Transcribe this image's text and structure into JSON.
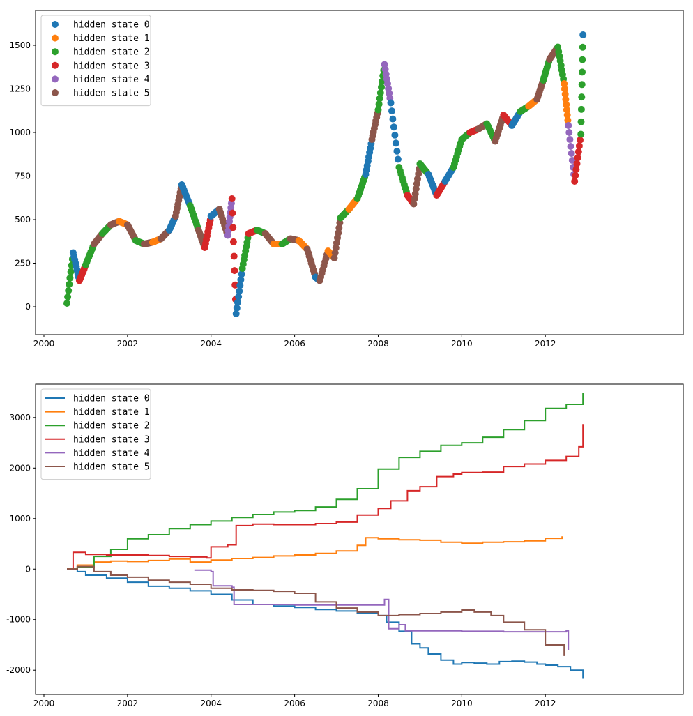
{
  "chart_data": [
    {
      "type": "scatter",
      "title": "",
      "xlabel": "",
      "ylabel": "",
      "xlim": [
        1999.8,
        2015.3
      ],
      "ylim": [
        -160,
        1700
      ],
      "xticks": [
        "2000",
        "2002",
        "2004",
        "2006",
        "2008",
        "2010",
        "2012"
      ],
      "yticks": [
        "0",
        "250",
        "500",
        "750",
        "1000",
        "1250",
        "1500"
      ],
      "grid": false,
      "legend_position": "top-left",
      "series": [
        {
          "name": "hidden state 0",
          "color": "#1f77b4"
        },
        {
          "name": "hidden state 1",
          "color": "#ff7f0e"
        },
        {
          "name": "hidden state 2",
          "color": "#2ca02c"
        },
        {
          "name": "hidden state 3",
          "color": "#d62728"
        },
        {
          "name": "hidden state 4",
          "color": "#9467bd"
        },
        {
          "name": "hidden state 5",
          "color": "#8c564b"
        }
      ],
      "price_x": [
        2000.55,
        2000.7,
        2000.85,
        2001.0,
        2001.2,
        2001.4,
        2001.6,
        2001.8,
        2002.0,
        2002.2,
        2002.4,
        2002.6,
        2002.8,
        2003.0,
        2003.15,
        2003.3,
        2003.5,
        2003.7,
        2003.85,
        2004.0,
        2004.2,
        2004.4,
        2004.5,
        2004.6,
        2004.75,
        2004.9,
        2005.1,
        2005.3,
        2005.5,
        2005.7,
        2005.9,
        2006.1,
        2006.3,
        2006.5,
        2006.6,
        2006.8,
        2006.95,
        2007.1,
        2007.3,
        2007.5,
        2007.7,
        2007.85,
        2008.0,
        2008.15,
        2008.3,
        2008.5,
        2008.7,
        2008.85,
        2009.0,
        2009.2,
        2009.4,
        2009.6,
        2009.8,
        2010.0,
        2010.2,
        2010.4,
        2010.6,
        2010.8,
        2011.0,
        2011.2,
        2011.4,
        2011.6,
        2011.8,
        2011.95,
        2012.1,
        2012.3,
        2012.45,
        2012.55,
        2012.7,
        2012.85,
        2012.9
      ],
      "price_y": [
        20,
        310,
        150,
        240,
        360,
        420,
        470,
        490,
        470,
        380,
        360,
        370,
        390,
        440,
        520,
        700,
        580,
        440,
        340,
        520,
        560,
        410,
        620,
        -40,
        220,
        420,
        440,
        420,
        360,
        360,
        390,
        380,
        330,
        170,
        150,
        320,
        280,
        510,
        560,
        620,
        760,
        960,
        1130,
        1390,
        1170,
        800,
        640,
        590,
        820,
        760,
        640,
        720,
        800,
        960,
        1000,
        1020,
        1050,
        950,
        1100,
        1040,
        1120,
        1150,
        1190,
        1300,
        1420,
        1490,
        1280,
        1040,
        720,
        990,
        1560
      ],
      "state_sequence": [
        2,
        0,
        3,
        2,
        5,
        2,
        5,
        1,
        5,
        2,
        5,
        1,
        5,
        0,
        5,
        0,
        2,
        5,
        3,
        0,
        5,
        4,
        3,
        0,
        2,
        3,
        2,
        5,
        1,
        2,
        5,
        1,
        5,
        0,
        5,
        1,
        5,
        2,
        1,
        2,
        0,
        5,
        2,
        4,
        0,
        2,
        3,
        5,
        2,
        0,
        3,
        0,
        2,
        2,
        3,
        5,
        2,
        5,
        3,
        0,
        2,
        1,
        5,
        2,
        5,
        2,
        1,
        4,
        3,
        2,
        0
      ]
    },
    {
      "type": "line",
      "title": "",
      "xlabel": "",
      "ylabel": "",
      "xlim": [
        1999.8,
        2015.3
      ],
      "ylim": [
        -2480,
        3660
      ],
      "xticks": [
        "2000",
        "2002",
        "2004",
        "2006",
        "2008",
        "2010",
        "2012"
      ],
      "yticks": [
        "-2000",
        "-1000",
        "0",
        "1000",
        "2000",
        "3000"
      ],
      "grid": false,
      "legend_position": "top-left",
      "series": [
        {
          "name": "hidden state 0",
          "color": "#1f77b4",
          "x": [
            2000.55,
            2000.8,
            2001.0,
            2001.5,
            2002.0,
            2002.5,
            2003.0,
            2003.5,
            2004.0,
            2004.5,
            2005.0,
            2005.5,
            2006.0,
            2006.5,
            2007.0,
            2007.5,
            2008.0,
            2008.2,
            2008.5,
            2008.8,
            2009.0,
            2009.2,
            2009.5,
            2009.8,
            2010.0,
            2010.3,
            2010.6,
            2010.9,
            2011.2,
            2011.5,
            2011.8,
            2012.0,
            2012.3,
            2012.6,
            2012.9
          ],
          "y": [
            0,
            -50,
            -120,
            -180,
            -260,
            -340,
            -380,
            -430,
            -500,
            -610,
            -700,
            -730,
            -760,
            -800,
            -830,
            -870,
            -920,
            -1050,
            -1230,
            -1480,
            -1560,
            -1680,
            -1800,
            -1880,
            -1850,
            -1860,
            -1880,
            -1830,
            -1820,
            -1840,
            -1880,
            -1900,
            -1930,
            -2000,
            -2170
          ]
        },
        {
          "name": "hidden state 1",
          "color": "#ff7f0e",
          "x": [
            2000.55,
            2000.8,
            2001.2,
            2001.6,
            2002.0,
            2002.5,
            2003.0,
            2003.5,
            2004.0,
            2004.5,
            2005.0,
            2005.5,
            2006.0,
            2006.5,
            2007.0,
            2007.5,
            2007.7,
            2008.0,
            2008.5,
            2009.0,
            2009.5,
            2010.0,
            2010.5,
            2011.0,
            2011.5,
            2012.0,
            2012.4
          ],
          "y": [
            0,
            80,
            140,
            160,
            150,
            170,
            200,
            140,
            180,
            210,
            230,
            260,
            280,
            310,
            360,
            470,
            620,
            600,
            580,
            570,
            530,
            510,
            530,
            540,
            560,
            610,
            650
          ]
        },
        {
          "name": "hidden state 2",
          "color": "#2ca02c",
          "x": [
            2000.55,
            2000.8,
            2001.2,
            2001.6,
            2002.0,
            2002.5,
            2003.0,
            2003.5,
            2004.0,
            2004.5,
            2005.0,
            2005.5,
            2006.0,
            2006.5,
            2007.0,
            2007.5,
            2008.0,
            2008.5,
            2009.0,
            2009.5,
            2010.0,
            2010.5,
            2011.0,
            2011.5,
            2012.0,
            2012.5,
            2012.9
          ],
          "y": [
            0,
            40,
            250,
            390,
            600,
            680,
            800,
            880,
            950,
            1020,
            1080,
            1130,
            1160,
            1230,
            1380,
            1590,
            1980,
            2210,
            2330,
            2450,
            2500,
            2610,
            2760,
            2940,
            3180,
            3260,
            3490
          ]
        },
        {
          "name": "hidden state 3",
          "color": "#d62728",
          "x": [
            2000.55,
            2000.7,
            2001.0,
            2001.5,
            2002.0,
            2002.5,
            2003.0,
            2003.5,
            2003.9,
            2004.0,
            2004.4,
            2004.6,
            2005.0,
            2005.5,
            2006.0,
            2006.5,
            2007.0,
            2007.5,
            2008.0,
            2008.3,
            2008.7,
            2009.0,
            2009.4,
            2009.8,
            2010.0,
            2010.5,
            2011.0,
            2011.5,
            2012.0,
            2012.5,
            2012.8,
            2012.9
          ],
          "y": [
            0,
            330,
            290,
            280,
            280,
            270,
            250,
            240,
            220,
            440,
            480,
            860,
            890,
            880,
            880,
            900,
            930,
            1070,
            1200,
            1350,
            1550,
            1630,
            1830,
            1880,
            1910,
            1920,
            2030,
            2080,
            2150,
            2230,
            2420,
            2870
          ]
        },
        {
          "name": "hidden state 4",
          "color": "#9467bd",
          "x": [
            2003.6,
            2004.0,
            2004.05,
            2004.5,
            2004.55,
            2005.0,
            2006.0,
            2007.0,
            2008.0,
            2008.15,
            2008.25,
            2008.5,
            2008.65,
            2009.0,
            2010.0,
            2011.0,
            2012.0,
            2012.5,
            2012.55
          ],
          "y": [
            -20,
            -50,
            -330,
            -360,
            -700,
            -700,
            -710,
            -710,
            -710,
            -600,
            -1180,
            -1100,
            -1220,
            -1220,
            -1230,
            -1240,
            -1240,
            -1220,
            -1600
          ]
        },
        {
          "name": "hidden state 5",
          "color": "#8c564b",
          "x": [
            2000.55,
            2000.8,
            2001.2,
            2001.6,
            2002.0,
            2002.5,
            2003.0,
            2003.5,
            2004.0,
            2004.5,
            2005.0,
            2005.5,
            2006.0,
            2006.5,
            2007.0,
            2007.5,
            2008.0,
            2008.5,
            2009.0,
            2009.5,
            2010.0,
            2010.3,
            2010.7,
            2011.0,
            2011.5,
            2012.0,
            2012.45
          ],
          "y": [
            0,
            50,
            -50,
            -120,
            -160,
            -220,
            -260,
            -300,
            -380,
            -410,
            -420,
            -440,
            -480,
            -650,
            -770,
            -850,
            -920,
            -900,
            -880,
            -850,
            -810,
            -850,
            -920,
            -1050,
            -1200,
            -1500,
            -1720
          ]
        }
      ]
    }
  ]
}
